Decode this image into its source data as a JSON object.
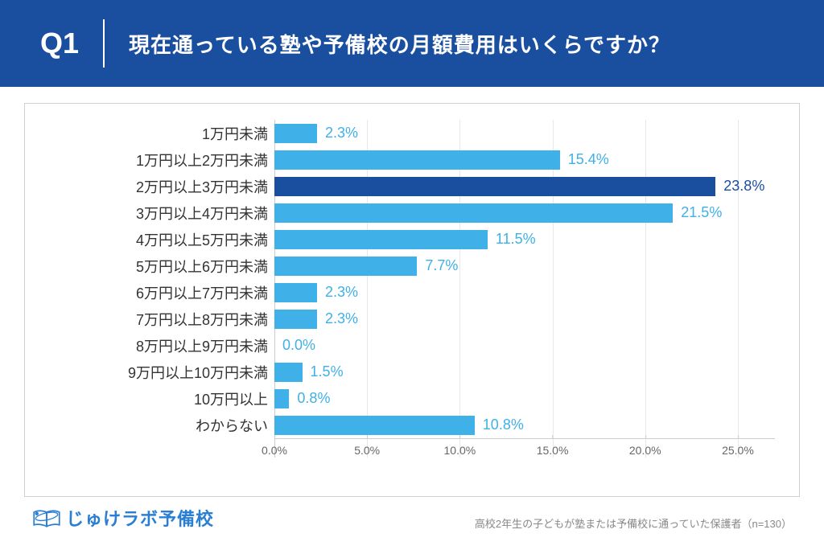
{
  "header": {
    "q_label": "Q1",
    "title": "現在通っている塾や予備校の月額費用はいくらですか？"
  },
  "chart": {
    "type": "bar",
    "orientation": "horizontal",
    "xlim": [
      0,
      27
    ],
    "xtick_step": 5,
    "xtick_max": 25,
    "xtick_suffix": ".0%",
    "value_suffix": "%",
    "bar_default_color": "#3fb0e8",
    "bar_highlight_color": "#1a4fa0",
    "value_label_default_color": "#3fb0e8",
    "value_label_highlight_color": "#1a4fa0",
    "background_color": "#ffffff",
    "grid_color": "#e8e8e8",
    "axis_color": "#cccccc",
    "category_fontsize": 18,
    "value_fontsize": 18,
    "tick_fontsize": 14,
    "categories": [
      {
        "label": "1万円未満",
        "value": 2.3,
        "highlight": false
      },
      {
        "label": "1万円以上2万円未満",
        "value": 15.4,
        "highlight": false
      },
      {
        "label": "2万円以上3万円未満",
        "value": 23.8,
        "highlight": true
      },
      {
        "label": "3万円以上4万円未満",
        "value": 21.5,
        "highlight": false
      },
      {
        "label": "4万円以上5万円未満",
        "value": 11.5,
        "highlight": false
      },
      {
        "label": "5万円以上6万円未満",
        "value": 7.7,
        "highlight": false
      },
      {
        "label": "6万円以上7万円未満",
        "value": 2.3,
        "highlight": false
      },
      {
        "label": "7万円以上8万円未満",
        "value": 2.3,
        "highlight": false
      },
      {
        "label": "8万円以上9万円未満",
        "value": 0.0,
        "highlight": false
      },
      {
        "label": "9万円以上10万円未満",
        "value": 1.5,
        "highlight": false
      },
      {
        "label": "10万円以上",
        "value": 0.8,
        "highlight": false
      },
      {
        "label": "わからない",
        "value": 10.8,
        "highlight": false
      }
    ]
  },
  "footer": {
    "logo_text": "じゅけラボ予備校",
    "footnote": "高校2年生の子どもが塾または予備校に通っていた保護者（n=130）"
  },
  "colors": {
    "header_bg": "#1a4fa0",
    "header_text": "#ffffff",
    "logo_color": "#2a7fd4"
  }
}
